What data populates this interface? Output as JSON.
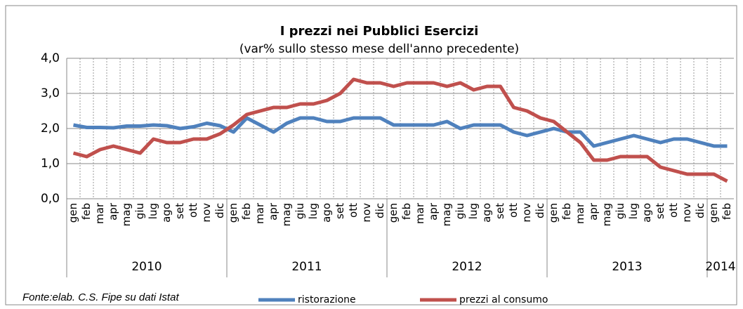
{
  "chart_data": {
    "type": "line",
    "title": "I prezzi nei Pubblici Esercizi",
    "subtitle": "(var% sullo stesso mese dell'anno precedente)",
    "categories": [
      "gen",
      "feb",
      "mar",
      "apr",
      "mag",
      "giu",
      "lug",
      "ago",
      "set",
      "ott",
      "nov",
      "dic",
      "gen",
      "feb",
      "mar",
      "apr",
      "mag",
      "giu",
      "lug",
      "ago",
      "set",
      "ott",
      "nov",
      "dic",
      "gen",
      "feb",
      "mar",
      "apr",
      "mag",
      "giu",
      "lug",
      "ago",
      "set",
      "ott",
      "nov",
      "dic",
      "gen",
      "feb",
      "mar",
      "apr",
      "mag",
      "giu",
      "lug",
      "ago",
      "set",
      "ott",
      "nov",
      "dic",
      "gen",
      "feb"
    ],
    "groups": [
      {
        "label": "2010",
        "count": 12
      },
      {
        "label": "2011",
        "count": 12
      },
      {
        "label": "2012",
        "count": 12
      },
      {
        "label": "2013",
        "count": 12
      },
      {
        "label": "2014",
        "count": 2
      }
    ],
    "series": [
      {
        "name": "ristorazione",
        "color": "#4f81bd",
        "values": [
          2.1,
          2.03,
          2.03,
          2.02,
          2.07,
          2.07,
          2.1,
          2.08,
          2.0,
          2.05,
          2.15,
          2.08,
          1.9,
          2.3,
          2.1,
          1.9,
          2.15,
          2.3,
          2.3,
          2.2,
          2.2,
          2.3,
          2.3,
          2.3,
          2.1,
          2.1,
          2.1,
          2.1,
          2.2,
          2.0,
          2.1,
          2.1,
          2.1,
          1.9,
          1.8,
          1.9,
          2.0,
          1.9,
          1.9,
          1.5,
          1.6,
          1.7,
          1.8,
          1.7,
          1.6,
          1.7,
          1.7,
          1.6,
          1.5,
          1.5
        ]
      },
      {
        "name": "prezzi al consumo",
        "color": "#c0504d",
        "values": [
          1.3,
          1.2,
          1.4,
          1.5,
          1.4,
          1.3,
          1.7,
          1.6,
          1.6,
          1.7,
          1.7,
          1.85,
          2.1,
          2.4,
          2.5,
          2.6,
          2.6,
          2.7,
          2.7,
          2.8,
          3.0,
          3.4,
          3.3,
          3.3,
          3.2,
          3.3,
          3.3,
          3.3,
          3.2,
          3.3,
          3.1,
          3.2,
          3.2,
          2.6,
          2.5,
          2.3,
          2.2,
          1.9,
          1.6,
          1.1,
          1.1,
          1.2,
          1.2,
          1.2,
          0.9,
          0.8,
          0.7,
          0.7,
          0.7,
          0.5
        ]
      }
    ],
    "ylim": [
      0,
      4
    ],
    "yticks": [
      {
        "value": 0,
        "label": "0,0"
      },
      {
        "value": 1,
        "label": "1,0"
      },
      {
        "value": 2,
        "label": "2,0"
      },
      {
        "value": 3,
        "label": "3,0"
      },
      {
        "value": 4,
        "label": "4,0"
      }
    ],
    "grid": true,
    "legend": "bottom",
    "source": "Fonte:elab. C.S. Fipe su dati Istat"
  }
}
